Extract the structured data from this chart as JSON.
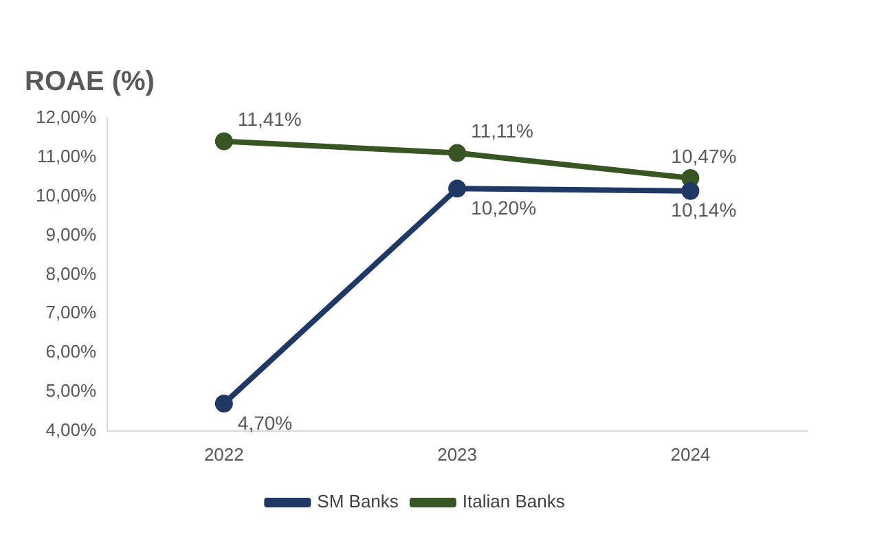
{
  "chart_data": {
    "type": "line",
    "title": "ROAE (%)",
    "categories": [
      "2022",
      "2023",
      "2024"
    ],
    "series": [
      {
        "name": "SM Banks",
        "color": "#203864",
        "values": [
          4.7,
          10.2,
          10.14
        ],
        "value_labels": [
          "4,70%",
          "10,20%",
          "10,14%"
        ]
      },
      {
        "name": "Italian Banks",
        "color": "#375623",
        "values": [
          11.41,
          11.11,
          10.47
        ],
        "value_labels": [
          "11,41%",
          "11,11%",
          "10,47%"
        ]
      }
    ],
    "ylim": [
      4,
      12
    ],
    "yticks": [
      {
        "value": 4,
        "label": "4,00%"
      },
      {
        "value": 5,
        "label": "5,00%"
      },
      {
        "value": 6,
        "label": "6,00%"
      },
      {
        "value": 7,
        "label": "7,00%"
      },
      {
        "value": 8,
        "label": "8,00%"
      },
      {
        "value": 9,
        "label": "9,00%"
      },
      {
        "value": 10,
        "label": "10,00%"
      },
      {
        "value": 11,
        "label": "11,00%"
      },
      {
        "value": 12,
        "label": "12,00%"
      }
    ],
    "grid": false,
    "legend": "bottom",
    "marker": "circle",
    "line_style": "solid"
  }
}
